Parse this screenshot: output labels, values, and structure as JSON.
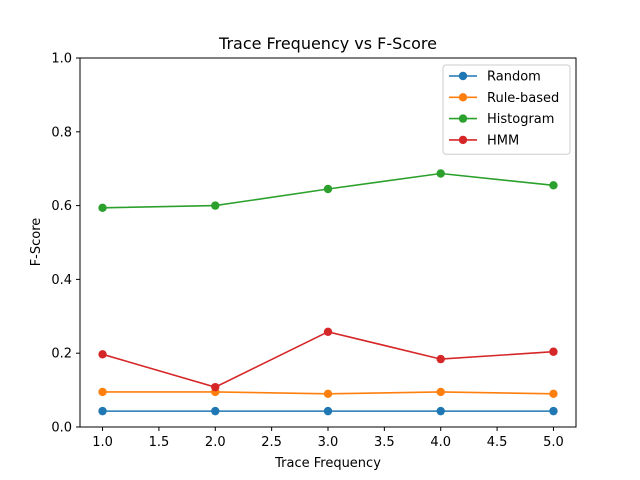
{
  "chart_data": {
    "type": "line",
    "title": "Trace Frequency vs F-Score",
    "xlabel": "Trace Frequency",
    "ylabel": "F-Score",
    "x": [
      1.0,
      2.0,
      3.0,
      4.0,
      5.0
    ],
    "xlim": [
      0.8,
      5.2
    ],
    "ylim": [
      0.0,
      1.0
    ],
    "xticks": [
      "1.0",
      "1.5",
      "2.0",
      "2.5",
      "3.0",
      "3.5",
      "4.0",
      "4.5",
      "5.0"
    ],
    "yticks": [
      "0.0",
      "0.2",
      "0.4",
      "0.6",
      "0.8",
      "1.0"
    ],
    "grid": false,
    "legend_position": "top-right",
    "series": [
      {
        "name": "Random",
        "color": "#1f77b4",
        "values": [
          0.043,
          0.043,
          0.043,
          0.043,
          0.043
        ]
      },
      {
        "name": "Rule-based",
        "color": "#ff7f0e",
        "values": [
          0.095,
          0.095,
          0.09,
          0.095,
          0.09
        ]
      },
      {
        "name": "Histogram",
        "color": "#2ca02c",
        "values": [
          0.594,
          0.6,
          0.645,
          0.687,
          0.655
        ]
      },
      {
        "name": "HMM",
        "color": "#d62728",
        "values": [
          0.197,
          0.108,
          0.258,
          0.184,
          0.204
        ]
      }
    ]
  }
}
